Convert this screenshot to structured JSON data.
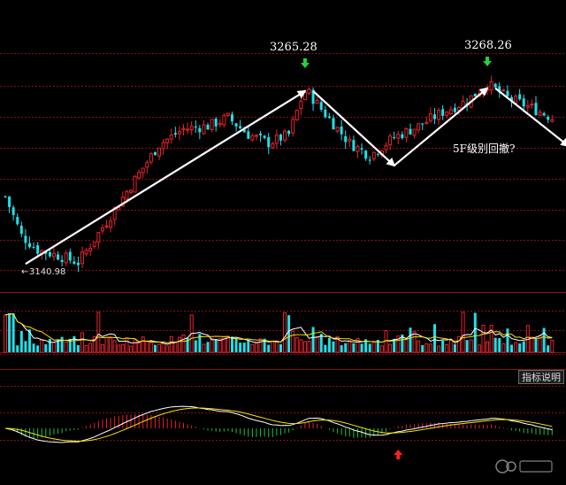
{
  "chart_data": {
    "type": "candlestick",
    "annotations": {
      "peak1": "3265.28",
      "peak2": "3268.26",
      "low": "3140.98",
      "question": "5F级别回撤?"
    },
    "indicator_button": "指标说明",
    "colors": {
      "up": "#e8222e",
      "down": "#1ee0e8",
      "grid": "#8a0f14",
      "macd_dif": "#ffffff",
      "macd_dea": "#f5e500",
      "macd_pos": "#e8222e",
      "macd_neg": "#1fbf3a",
      "arrow_down": "#25d13a",
      "arrow_up": "#ff2020",
      "trend": "#ffffff"
    },
    "price_waypoints": [
      [
        0,
        3188
      ],
      [
        4,
        3160
      ],
      [
        8,
        3150
      ],
      [
        13,
        3146
      ],
      [
        18,
        3141
      ],
      [
        25,
        3170
      ],
      [
        32,
        3200
      ],
      [
        38,
        3225
      ],
      [
        44,
        3236
      ],
      [
        50,
        3238
      ],
      [
        55,
        3244
      ],
      [
        60,
        3232
      ],
      [
        65,
        3226
      ],
      [
        70,
        3232
      ],
      [
        74,
        3265
      ],
      [
        78,
        3250
      ],
      [
        85,
        3226
      ],
      [
        90,
        3217
      ],
      [
        96,
        3230
      ],
      [
        102,
        3238
      ],
      [
        108,
        3248
      ],
      [
        114,
        3256
      ],
      [
        119,
        3268
      ],
      [
        124,
        3258
      ],
      [
        130,
        3251
      ],
      [
        135,
        3244
      ]
    ],
    "trend_lines": [
      [
        [
          5,
          3140
        ],
        [
          74,
          3263
        ]
      ],
      [
        [
          76,
          3263
        ],
        [
          96,
          3210
        ]
      ],
      [
        [
          96,
          3210
        ],
        [
          119,
          3265
        ]
      ],
      [
        [
          121,
          3265
        ],
        [
          139,
          3224
        ]
      ]
    ],
    "candle_count": 136,
    "price_range": [
      3120,
      3290
    ],
    "ticks": {
      "peak1_index": 74,
      "peak2_index": 119,
      "low_index": 5,
      "macd_up_arrow_index": 97
    }
  }
}
